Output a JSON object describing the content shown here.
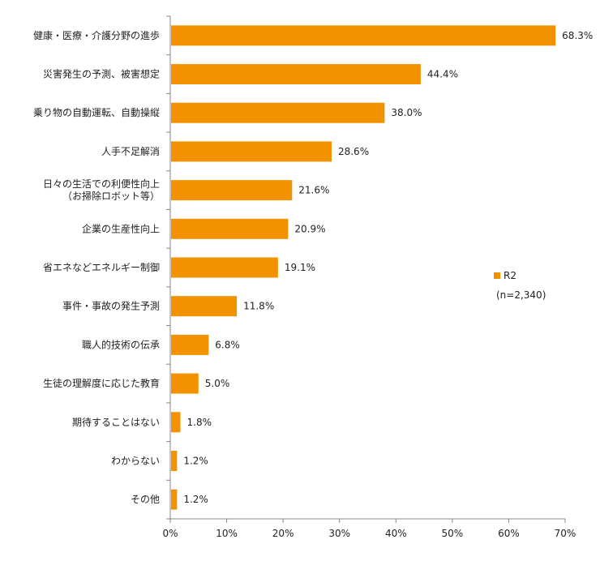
{
  "chart_data": {
    "type": "bar",
    "orientation": "horizontal",
    "categories": [
      [
        "健康・医療・介護分野の進歩"
      ],
      [
        "災害発生の予測、被害想定"
      ],
      [
        "乗り物の自動運転、自動操縦"
      ],
      [
        "人手不足解消"
      ],
      [
        "日々の生活での利便性向上",
        "（お掃除ロボット等）"
      ],
      [
        "企業の生産性向上"
      ],
      [
        "省エネなどエネルギー制御"
      ],
      [
        "事件・事故の発生予測"
      ],
      [
        "職人的技術の伝承"
      ],
      [
        "生徒の理解度に応じた教育"
      ],
      [
        "期待することはない"
      ],
      [
        "わからない"
      ],
      [
        "その他"
      ]
    ],
    "series": [
      {
        "name": "R2",
        "values": [
          68.3,
          44.4,
          38.0,
          28.6,
          21.6,
          20.9,
          19.1,
          11.8,
          6.8,
          5.0,
          1.8,
          1.2,
          1.2
        ]
      }
    ],
    "value_labels": [
      "68.3%",
      "44.4%",
      "38.0%",
      "28.6%",
      "21.6%",
      "20.9%",
      "19.1%",
      "11.8%",
      "6.8%",
      "5.0%",
      "1.8%",
      "1.2%",
      "1.2%"
    ],
    "xlim": [
      0,
      70
    ],
    "xticks": [
      0,
      10,
      20,
      30,
      40,
      50,
      60,
      70
    ],
    "xtick_labels": [
      "0%",
      "10%",
      "20%",
      "30%",
      "40%",
      "50%",
      "60%",
      "70%"
    ],
    "grid": false,
    "legend": {
      "position": "right",
      "entries": [
        "R2"
      ],
      "note": "(n=2,340)"
    },
    "colors": {
      "bar": "#f39200",
      "axis": "#888888"
    }
  }
}
